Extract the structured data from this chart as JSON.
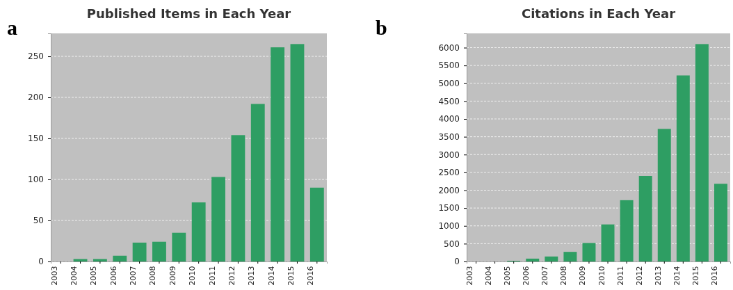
{
  "chart_data": [
    {
      "type": "bar",
      "title": "Published Items in Each Year",
      "annotations": [
        "a"
      ],
      "categories": [
        "2003",
        "2004",
        "2005",
        "2006",
        "2007",
        "2008",
        "2009",
        "2010",
        "2011",
        "2012",
        "2013",
        "2014",
        "2015",
        "2016"
      ],
      "values": [
        0,
        3,
        3,
        7,
        23,
        24,
        35,
        72,
        103,
        154,
        192,
        261,
        265,
        90
      ],
      "color": "#2e9e63",
      "ylim": [
        0,
        278
      ],
      "yticks": [
        0,
        50,
        100,
        150,
        200,
        250
      ],
      "grid": "y"
    },
    {
      "type": "bar",
      "title": "Citations in Each Year",
      "annotations": [
        "b"
      ],
      "categories": [
        "2003",
        "2004",
        "2005",
        "2006",
        "2007",
        "2008",
        "2009",
        "2010",
        "2011",
        "2012",
        "2013",
        "2014",
        "2015",
        "2016"
      ],
      "values": [
        0,
        0,
        20,
        80,
        140,
        270,
        520,
        1040,
        1720,
        2400,
        3720,
        5220,
        6100,
        2180
      ],
      "color": "#2e9e63",
      "ylim": [
        0,
        6400
      ],
      "yticks": [
        0,
        500,
        1000,
        1500,
        2000,
        2500,
        3000,
        3500,
        4000,
        4500,
        5000,
        5500,
        6000
      ],
      "grid": "y"
    }
  ]
}
